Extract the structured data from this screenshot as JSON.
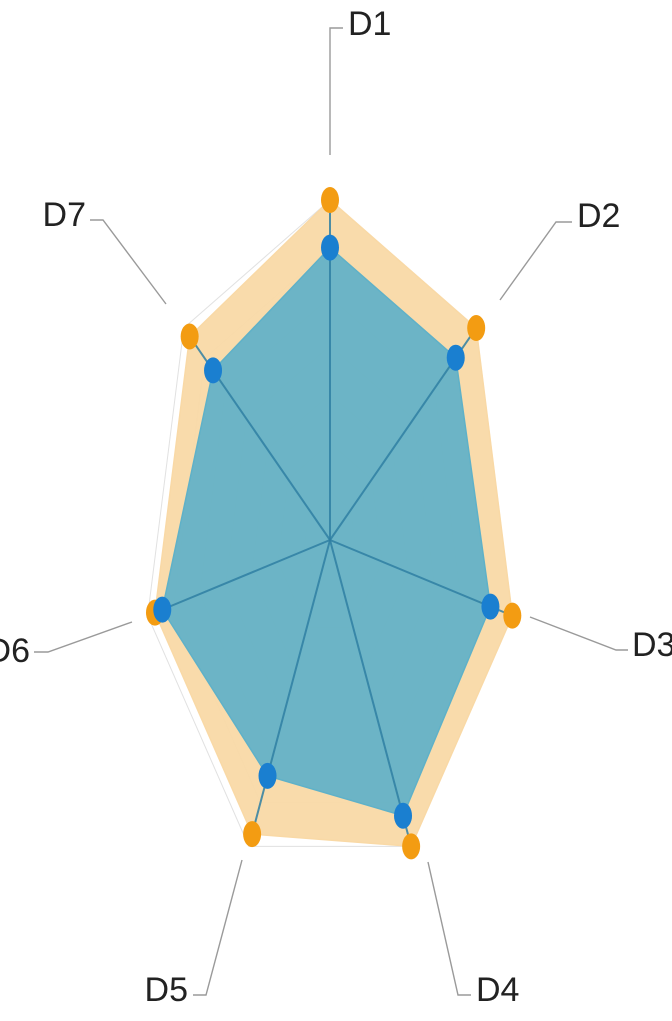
{
  "chart_data": {
    "type": "radar",
    "categories": [
      "D1",
      "D2",
      "D3",
      "D4",
      "D5",
      "D6",
      "D7"
    ],
    "rmax": 1.0,
    "grid_levels": 7,
    "series": [
      {
        "color": "#f39c12",
        "fill": "#f9d9a6",
        "values": [
          1.0,
          1.0,
          1.0,
          1.0,
          0.96,
          0.96,
          0.96
        ]
      },
      {
        "color": "#1a7fd0",
        "fill": "#5fb1c8",
        "values": [
          0.86,
          0.86,
          0.88,
          0.9,
          0.77,
          0.92,
          0.8
        ]
      }
    ]
  },
  "colors": {
    "label_text": "#222222",
    "leader_line": "#9a9a9a",
    "outer_spoke": "#c7863a",
    "inner_spoke": "#2f7fa2"
  }
}
